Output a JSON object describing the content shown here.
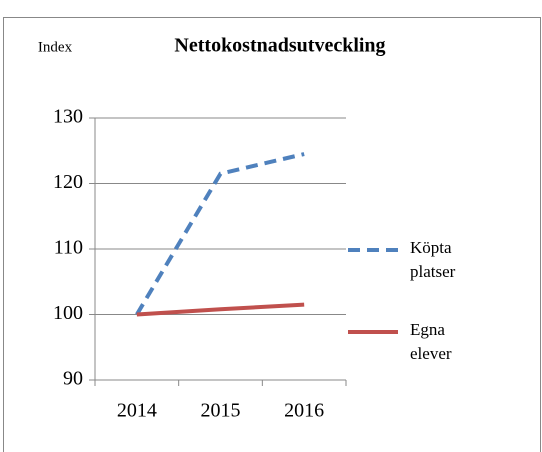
{
  "chart_data": {
    "type": "line",
    "title": "Nettokostnadsutveckling",
    "y_label": "Index",
    "categories": [
      "2014",
      "2015",
      "2016"
    ],
    "series": [
      {
        "name": "Köpta platser",
        "color": "#4f81bd",
        "dash": true,
        "values": [
          100,
          121.5,
          124.5
        ]
      },
      {
        "name": "Egna elever",
        "color": "#c0504d",
        "dash": false,
        "values": [
          100,
          100.8,
          101.5
        ]
      }
    ],
    "ylim": [
      90,
      130
    ],
    "yticks": [
      90,
      100,
      110,
      120,
      130
    ],
    "grid": true,
    "legend": "right"
  }
}
